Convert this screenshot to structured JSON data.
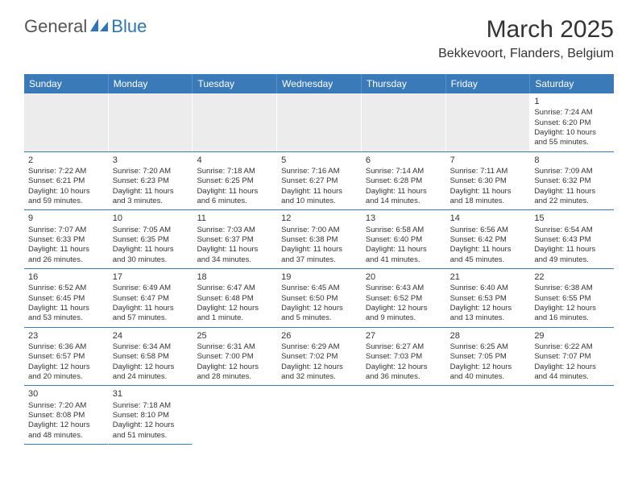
{
  "logo": {
    "text_general": "General",
    "text_blue": "Blue",
    "icon_color": "#2e75b6"
  },
  "title": "March 2025",
  "location": "Bekkevoort, Flanders, Belgium",
  "header_bg": "#3a7ab8",
  "weekdays": [
    "Sunday",
    "Monday",
    "Tuesday",
    "Wednesday",
    "Thursday",
    "Friday",
    "Saturday"
  ],
  "weeks": [
    [
      null,
      null,
      null,
      null,
      null,
      null,
      {
        "n": "1",
        "sr": "Sunrise: 7:24 AM",
        "ss": "Sunset: 6:20 PM",
        "dl1": "Daylight: 10 hours",
        "dl2": "and 55 minutes."
      }
    ],
    [
      {
        "n": "2",
        "sr": "Sunrise: 7:22 AM",
        "ss": "Sunset: 6:21 PM",
        "dl1": "Daylight: 10 hours",
        "dl2": "and 59 minutes."
      },
      {
        "n": "3",
        "sr": "Sunrise: 7:20 AM",
        "ss": "Sunset: 6:23 PM",
        "dl1": "Daylight: 11 hours",
        "dl2": "and 3 minutes."
      },
      {
        "n": "4",
        "sr": "Sunrise: 7:18 AM",
        "ss": "Sunset: 6:25 PM",
        "dl1": "Daylight: 11 hours",
        "dl2": "and 6 minutes."
      },
      {
        "n": "5",
        "sr": "Sunrise: 7:16 AM",
        "ss": "Sunset: 6:27 PM",
        "dl1": "Daylight: 11 hours",
        "dl2": "and 10 minutes."
      },
      {
        "n": "6",
        "sr": "Sunrise: 7:14 AM",
        "ss": "Sunset: 6:28 PM",
        "dl1": "Daylight: 11 hours",
        "dl2": "and 14 minutes."
      },
      {
        "n": "7",
        "sr": "Sunrise: 7:11 AM",
        "ss": "Sunset: 6:30 PM",
        "dl1": "Daylight: 11 hours",
        "dl2": "and 18 minutes."
      },
      {
        "n": "8",
        "sr": "Sunrise: 7:09 AM",
        "ss": "Sunset: 6:32 PM",
        "dl1": "Daylight: 11 hours",
        "dl2": "and 22 minutes."
      }
    ],
    [
      {
        "n": "9",
        "sr": "Sunrise: 7:07 AM",
        "ss": "Sunset: 6:33 PM",
        "dl1": "Daylight: 11 hours",
        "dl2": "and 26 minutes."
      },
      {
        "n": "10",
        "sr": "Sunrise: 7:05 AM",
        "ss": "Sunset: 6:35 PM",
        "dl1": "Daylight: 11 hours",
        "dl2": "and 30 minutes."
      },
      {
        "n": "11",
        "sr": "Sunrise: 7:03 AM",
        "ss": "Sunset: 6:37 PM",
        "dl1": "Daylight: 11 hours",
        "dl2": "and 34 minutes."
      },
      {
        "n": "12",
        "sr": "Sunrise: 7:00 AM",
        "ss": "Sunset: 6:38 PM",
        "dl1": "Daylight: 11 hours",
        "dl2": "and 37 minutes."
      },
      {
        "n": "13",
        "sr": "Sunrise: 6:58 AM",
        "ss": "Sunset: 6:40 PM",
        "dl1": "Daylight: 11 hours",
        "dl2": "and 41 minutes."
      },
      {
        "n": "14",
        "sr": "Sunrise: 6:56 AM",
        "ss": "Sunset: 6:42 PM",
        "dl1": "Daylight: 11 hours",
        "dl2": "and 45 minutes."
      },
      {
        "n": "15",
        "sr": "Sunrise: 6:54 AM",
        "ss": "Sunset: 6:43 PM",
        "dl1": "Daylight: 11 hours",
        "dl2": "and 49 minutes."
      }
    ],
    [
      {
        "n": "16",
        "sr": "Sunrise: 6:52 AM",
        "ss": "Sunset: 6:45 PM",
        "dl1": "Daylight: 11 hours",
        "dl2": "and 53 minutes."
      },
      {
        "n": "17",
        "sr": "Sunrise: 6:49 AM",
        "ss": "Sunset: 6:47 PM",
        "dl1": "Daylight: 11 hours",
        "dl2": "and 57 minutes."
      },
      {
        "n": "18",
        "sr": "Sunrise: 6:47 AM",
        "ss": "Sunset: 6:48 PM",
        "dl1": "Daylight: 12 hours",
        "dl2": "and 1 minute."
      },
      {
        "n": "19",
        "sr": "Sunrise: 6:45 AM",
        "ss": "Sunset: 6:50 PM",
        "dl1": "Daylight: 12 hours",
        "dl2": "and 5 minutes."
      },
      {
        "n": "20",
        "sr": "Sunrise: 6:43 AM",
        "ss": "Sunset: 6:52 PM",
        "dl1": "Daylight: 12 hours",
        "dl2": "and 9 minutes."
      },
      {
        "n": "21",
        "sr": "Sunrise: 6:40 AM",
        "ss": "Sunset: 6:53 PM",
        "dl1": "Daylight: 12 hours",
        "dl2": "and 13 minutes."
      },
      {
        "n": "22",
        "sr": "Sunrise: 6:38 AM",
        "ss": "Sunset: 6:55 PM",
        "dl1": "Daylight: 12 hours",
        "dl2": "and 16 minutes."
      }
    ],
    [
      {
        "n": "23",
        "sr": "Sunrise: 6:36 AM",
        "ss": "Sunset: 6:57 PM",
        "dl1": "Daylight: 12 hours",
        "dl2": "and 20 minutes."
      },
      {
        "n": "24",
        "sr": "Sunrise: 6:34 AM",
        "ss": "Sunset: 6:58 PM",
        "dl1": "Daylight: 12 hours",
        "dl2": "and 24 minutes."
      },
      {
        "n": "25",
        "sr": "Sunrise: 6:31 AM",
        "ss": "Sunset: 7:00 PM",
        "dl1": "Daylight: 12 hours",
        "dl2": "and 28 minutes."
      },
      {
        "n": "26",
        "sr": "Sunrise: 6:29 AM",
        "ss": "Sunset: 7:02 PM",
        "dl1": "Daylight: 12 hours",
        "dl2": "and 32 minutes."
      },
      {
        "n": "27",
        "sr": "Sunrise: 6:27 AM",
        "ss": "Sunset: 7:03 PM",
        "dl1": "Daylight: 12 hours",
        "dl2": "and 36 minutes."
      },
      {
        "n": "28",
        "sr": "Sunrise: 6:25 AM",
        "ss": "Sunset: 7:05 PM",
        "dl1": "Daylight: 12 hours",
        "dl2": "and 40 minutes."
      },
      {
        "n": "29",
        "sr": "Sunrise: 6:22 AM",
        "ss": "Sunset: 7:07 PM",
        "dl1": "Daylight: 12 hours",
        "dl2": "and 44 minutes."
      }
    ],
    [
      {
        "n": "30",
        "sr": "Sunrise: 7:20 AM",
        "ss": "Sunset: 8:08 PM",
        "dl1": "Daylight: 12 hours",
        "dl2": "and 48 minutes."
      },
      {
        "n": "31",
        "sr": "Sunrise: 7:18 AM",
        "ss": "Sunset: 8:10 PM",
        "dl1": "Daylight: 12 hours",
        "dl2": "and 51 minutes."
      },
      null,
      null,
      null,
      null,
      null
    ]
  ]
}
